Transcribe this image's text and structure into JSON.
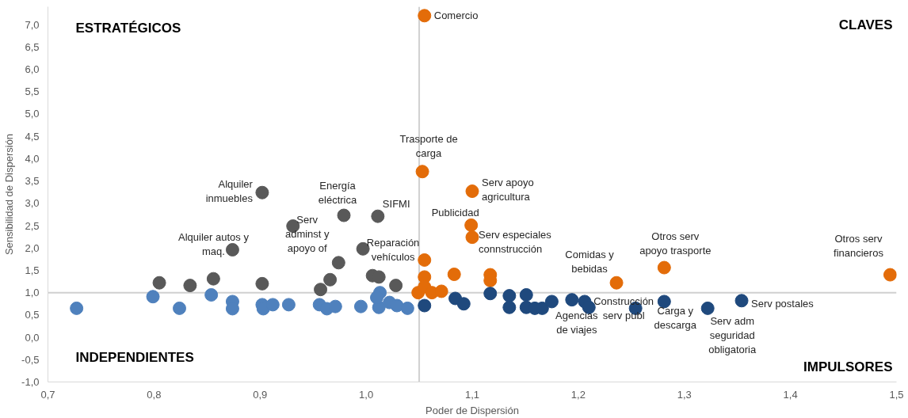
{
  "chart_data": {
    "type": "scatter",
    "xlabel": "Poder de Dispersión",
    "ylabel": "Sensibilidad de Dispersión",
    "marker": "circle",
    "grid": false,
    "xlim": [
      0.7,
      1.5
    ],
    "ylim": [
      -1.0,
      7.4
    ],
    "xticks": [
      {
        "value": 0.7,
        "label": "0,7"
      },
      {
        "value": 0.8,
        "label": "0,8"
      },
      {
        "value": 0.9,
        "label": "0,9"
      },
      {
        "value": 1.0,
        "label": "1,0"
      },
      {
        "value": 1.1,
        "label": "1,1"
      },
      {
        "value": 1.2,
        "label": "1,2"
      },
      {
        "value": 1.3,
        "label": "1,3"
      },
      {
        "value": 1.4,
        "label": "1,4"
      },
      {
        "value": 1.5,
        "label": "1,5"
      }
    ],
    "yticks": [
      {
        "value": -1.0,
        "label": "-1,0"
      },
      {
        "value": -0.5,
        "label": "-0,5"
      },
      {
        "value": 0.0,
        "label": "0,0"
      },
      {
        "value": 0.5,
        "label": "0,5"
      },
      {
        "value": 1.0,
        "label": "1,0"
      },
      {
        "value": 1.5,
        "label": "1,5"
      },
      {
        "value": 2.0,
        "label": "2,0"
      },
      {
        "value": 2.5,
        "label": "2,5"
      },
      {
        "value": 3.0,
        "label": "3,0"
      },
      {
        "value": 3.5,
        "label": "3,5"
      },
      {
        "value": 4.0,
        "label": "4,0"
      },
      {
        "value": 4.5,
        "label": "4,5"
      },
      {
        "value": 5.0,
        "label": "5,0"
      },
      {
        "value": 5.5,
        "label": "5,5"
      },
      {
        "value": 6.0,
        "label": "6,0"
      },
      {
        "value": 6.5,
        "label": "6,5"
      },
      {
        "value": 7.0,
        "label": "7,0"
      }
    ],
    "ref_lines": [
      {
        "axis": "x",
        "value": 1.05,
        "color": "#d0d0d0"
      },
      {
        "axis": "y",
        "value": 1.0,
        "color": "#d0d0d0"
      }
    ],
    "series": [
      {
        "color": "#e36c09",
        "x": [
          1.055,
          1.053,
          1.1,
          1.099,
          1.1,
          1.055,
          1.055,
          1.049,
          1.055,
          1.062,
          1.071,
          1.083,
          1.117,
          1.117,
          1.236,
          1.281,
          1.494
        ],
        "values": [
          7.2,
          3.71,
          3.27,
          2.51,
          2.24,
          1.73,
          1.35,
          1.0,
          1.13,
          1.0,
          1.03,
          1.41,
          1.4,
          1.27,
          1.22,
          1.56,
          1.4
        ]
      },
      {
        "color": "#595959",
        "x": [
          0.902,
          0.979,
          1.011,
          0.931,
          0.874,
          0.997,
          0.974,
          0.805,
          0.834,
          0.856,
          0.902,
          0.957,
          0.966,
          1.006,
          1.012,
          1.028
        ],
        "values": [
          3.24,
          2.73,
          2.71,
          2.49,
          1.96,
          1.98,
          1.67,
          1.22,
          1.16,
          1.31,
          1.2,
          1.07,
          1.29,
          1.38,
          1.35,
          1.16
        ]
      },
      {
        "color": "#4f81bd",
        "x": [
          0.727,
          0.799,
          0.824,
          0.854,
          0.874,
          0.874,
          0.902,
          0.903,
          0.912,
          0.927,
          0.956,
          0.963,
          0.971,
          0.995,
          1.012,
          1.013,
          1.01,
          1.022,
          1.029,
          1.039
        ],
        "values": [
          0.65,
          0.91,
          0.65,
          0.95,
          0.8,
          0.64,
          0.73,
          0.64,
          0.73,
          0.73,
          0.73,
          0.64,
          0.69,
          0.69,
          0.67,
          1.0,
          0.89,
          0.78,
          0.71,
          0.65
        ]
      },
      {
        "color": "#1f497d",
        "x": [
          1.055,
          1.084,
          1.092,
          1.117,
          1.135,
          1.135,
          1.151,
          1.151,
          1.159,
          1.166,
          1.175,
          1.194,
          1.206,
          1.21,
          1.254,
          1.281,
          1.322,
          1.354
        ],
        "values": [
          0.71,
          0.87,
          0.75,
          0.98,
          0.93,
          0.67,
          0.95,
          0.67,
          0.65,
          0.65,
          0.8,
          0.84,
          0.8,
          0.67,
          0.65,
          0.8,
          0.65,
          0.82
        ]
      }
    ],
    "annotations": [
      {
        "text": "Comercio",
        "x": 1.055,
        "y": 7.2
      },
      {
        "text": "Trasporte de\ncarga",
        "x": 1.053,
        "y": 3.71
      },
      {
        "text": "Serv apoyo\nagricultura",
        "x": 1.1,
        "y": 3.27
      },
      {
        "text": "Publicidad",
        "x": 1.099,
        "y": 2.51
      },
      {
        "text": "Serv especiales\nconnstrucción",
        "x": 1.1,
        "y": 2.24
      },
      {
        "text": "Comidas y\nbebidas",
        "x": 1.236,
        "y": 1.22
      },
      {
        "text": "Otros serv\napoyo trasporte",
        "x": 1.281,
        "y": 1.56
      },
      {
        "text": "Otros serv\nfinancieros",
        "x": 1.494,
        "y": 1.4
      },
      {
        "text": "Alquiler\ninmuebles",
        "x": 0.902,
        "y": 3.24
      },
      {
        "text": "Energía\neléctrica",
        "x": 0.979,
        "y": 2.73
      },
      {
        "text": "SIFMI",
        "x": 1.011,
        "y": 2.71
      },
      {
        "text": "Serv\nadminst y\napoyo of",
        "x": 0.931,
        "y": 2.49
      },
      {
        "text": "Alquiler autos y\nmaq.",
        "x": 0.874,
        "y": 1.96
      },
      {
        "text": "Reparación\nvehículos",
        "x": 0.997,
        "y": 1.98
      },
      {
        "text": "Agencias\nde viajes",
        "x": 1.194,
        "y": 0.84
      },
      {
        "text": "Construcción\nserv publ",
        "x": 1.254,
        "y": 0.65
      },
      {
        "text": "Carga y\ndescarga",
        "x": 1.281,
        "y": 0.8
      },
      {
        "text": "Serv adm\nseguridad\nobligatoria",
        "x": 1.322,
        "y": 0.65
      },
      {
        "text": "Serv postales",
        "x": 1.354,
        "y": 0.82
      },
      "ESTRATÉGICOS",
      "CLAVES",
      "INDEPENDIENTES",
      "IMPULSORES"
    ]
  }
}
